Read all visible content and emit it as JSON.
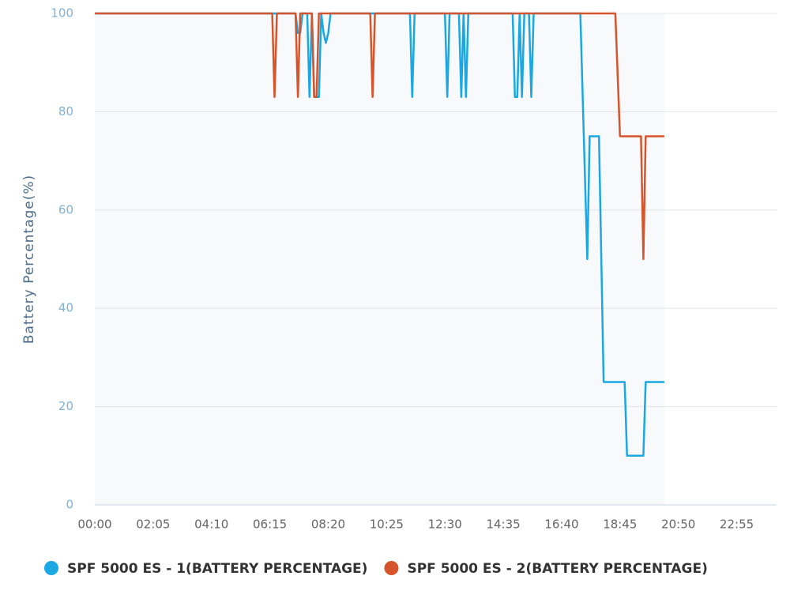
{
  "chart_data": {
    "type": "line",
    "y_label": "Battery Percentage(%)",
    "x": [
      "00:00",
      "06:20",
      "06:25",
      "06:30",
      "07:10",
      "07:15",
      "07:20",
      "07:25",
      "07:35",
      "07:40",
      "07:45",
      "07:50",
      "07:55",
      "08:00",
      "08:05",
      "08:10",
      "08:15",
      "08:20",
      "08:25",
      "09:50",
      "09:55",
      "10:00",
      "11:15",
      "11:20",
      "11:25",
      "12:30",
      "12:35",
      "12:40",
      "13:00",
      "13:05",
      "13:10",
      "13:15",
      "13:20",
      "14:55",
      "15:00",
      "15:05",
      "15:10",
      "15:15",
      "15:20",
      "15:30",
      "15:35",
      "15:40",
      "17:20",
      "17:35",
      "17:40",
      "18:00",
      "18:10",
      "18:35",
      "18:45",
      "18:55",
      "19:00",
      "19:30",
      "19:35",
      "19:40",
      "20:20"
    ],
    "series": [
      {
        "name": "SPF 5000 ES - 1(BATTERY PERCENTAGE)",
        "color": "#1ba8e2",
        "values": [
          100,
          100,
          100,
          100,
          100,
          96,
          96,
          100,
          100,
          83,
          100,
          83,
          83,
          83,
          100,
          96,
          94,
          96,
          100,
          100,
          100,
          100,
          100,
          83,
          100,
          100,
          83,
          100,
          100,
          83,
          100,
          83,
          100,
          100,
          83,
          83,
          100,
          83,
          100,
          100,
          83,
          100,
          100,
          50,
          75,
          75,
          25,
          25,
          25,
          25,
          10,
          10,
          10,
          25,
          25
        ]
      },
      {
        "name": "SPF 5000 ES - 2(BATTERY PERCENTAGE)",
        "color": "#d6542c",
        "values": [
          100,
          100,
          83,
          100,
          100,
          83,
          100,
          100,
          100,
          100,
          100,
          83,
          83,
          100,
          100,
          100,
          100,
          100,
          100,
          100,
          83,
          100,
          100,
          100,
          100,
          100,
          100,
          100,
          100,
          100,
          100,
          100,
          100,
          100,
          100,
          100,
          100,
          100,
          100,
          100,
          100,
          100,
          100,
          100,
          100,
          100,
          100,
          100,
          75,
          75,
          75,
          75,
          50,
          75,
          75
        ]
      }
    ],
    "xlim": [
      "00:00",
      "23:55"
    ],
    "xticks": [
      "00:00",
      "02:05",
      "04:10",
      "06:15",
      "08:20",
      "10:25",
      "12:30",
      "14:35",
      "16:40",
      "18:45",
      "20:50",
      "22:55"
    ],
    "ylim": [
      0,
      100
    ],
    "yticks": [
      0,
      20,
      40,
      60,
      80,
      100
    ],
    "grid": true,
    "legend": "bottom"
  }
}
